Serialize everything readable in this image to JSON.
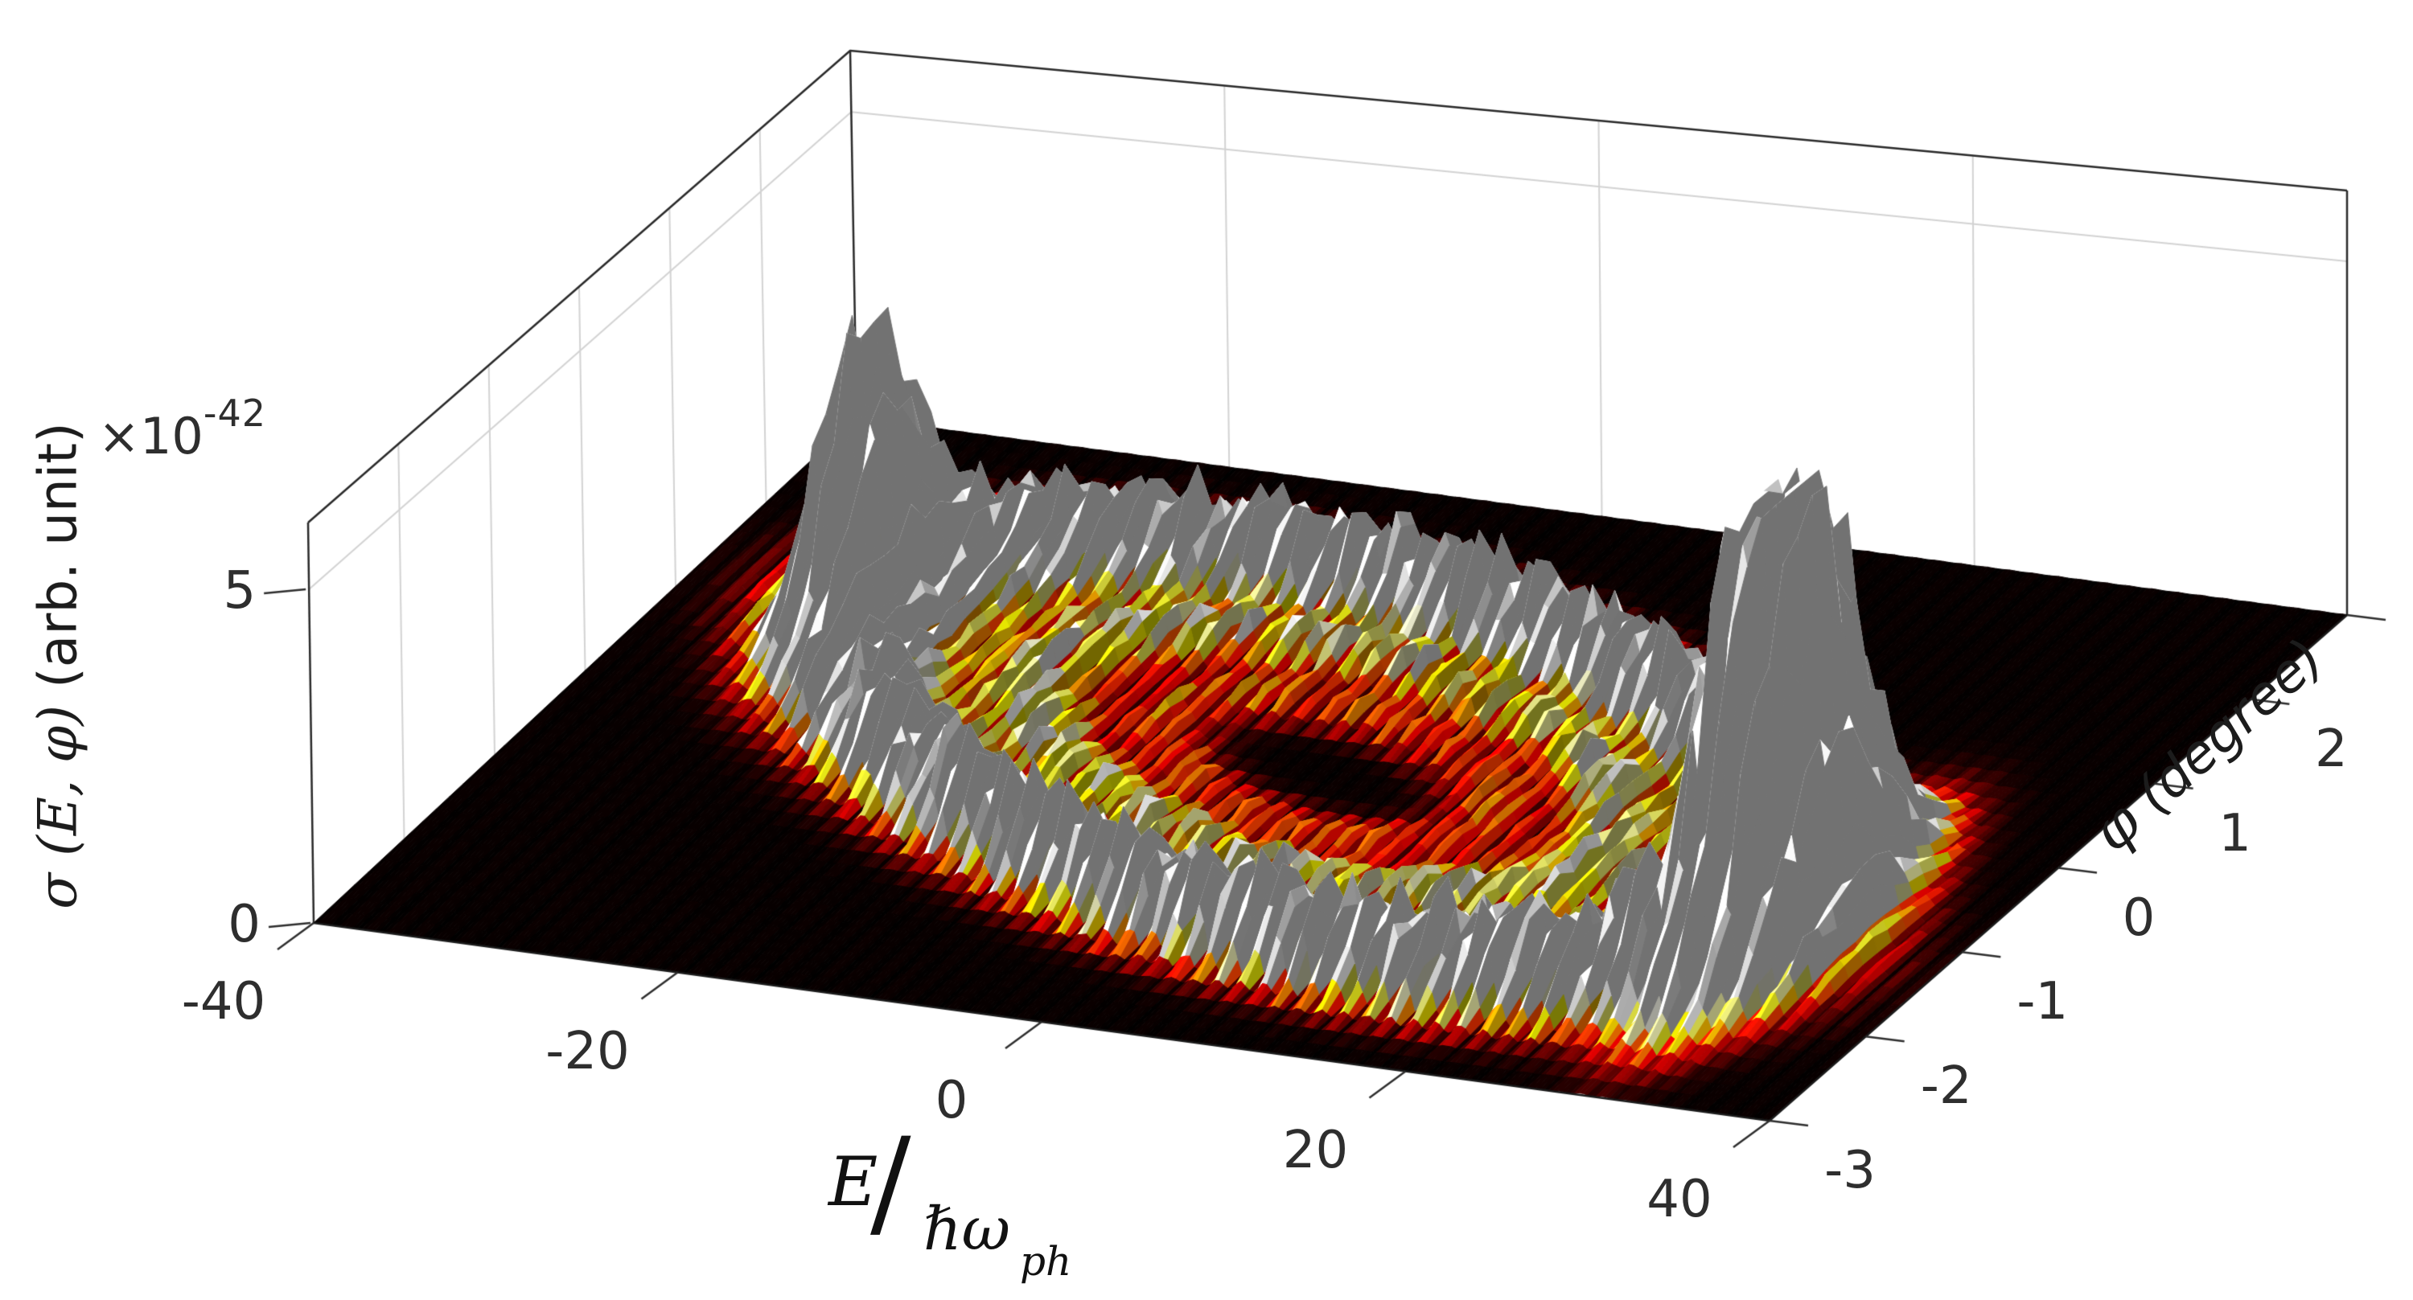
{
  "colors": {
    "background": "#ffffff",
    "box_edge": "#2a2a2a",
    "grid_line": "#d3d3d3",
    "tick": "#2e2e2e",
    "text": "#1c1c1c"
  },
  "chart_data": {
    "type": "surface3d",
    "title": "",
    "xlabel": "E/ℏω_ph",
    "ylabel": "φ (degree)",
    "zlabel": "σ (E, φ) (arb. unit)",
    "z_exponent": {
      "base": "×10",
      "power": "-42"
    },
    "x_ticks": [
      "-40",
      "-20",
      "0",
      "20",
      "40"
    ],
    "x_tick_values": [
      -40,
      -20,
      0,
      20,
      40
    ],
    "y_ticks": [
      "-3",
      "-2",
      "-1",
      "0",
      "1",
      "2"
    ],
    "y_tick_values": [
      -3,
      -2,
      -1,
      0,
      1,
      2
    ],
    "y_tick_marks": [
      -3,
      -2,
      -1,
      0,
      1,
      2,
      3
    ],
    "z_ticks": [
      "0",
      "5"
    ],
    "z_tick_values": [
      0,
      5
    ],
    "xlim": [
      -40,
      40
    ],
    "ylim": [
      -3,
      3
    ],
    "zlim": [
      0,
      6
    ],
    "grid": true,
    "legend": "none",
    "colormap": "hot",
    "color_axis_max": 0.5,
    "view": "matlab-default-3d (az -37.5, el 30)",
    "wall_grid_x": [
      -20,
      0,
      20
    ],
    "wall_grid_y": [
      -2,
      -1,
      0,
      1,
      2
    ],
    "wall_grid_z": [
      5
    ],
    "labels": {
      "xlabel_numerator": "E",
      "xlabel_slash": "∕",
      "xlabel_denominator": "ℏω",
      "xlabel_denominator_sub": "ph",
      "ylabel_symbol": "φ",
      "ylabel_unit": " (degree)",
      "zlabel_symbol": "σ",
      "zlabel_args": " (E, φ)",
      "zlabel_unit": " (arb. unit)"
    },
    "surface_model": {
      "description": "oscillatory interference ring with two dominant clipped peaks, hot colormap, values ×10^-42 arb. unit",
      "ring_center_E": 0.5,
      "ring_center_phi": -0.05,
      "ring_tilt_phi_per_E": 0.035,
      "ring_radius_E": 29.5,
      "ring_radius_phi": 1.72,
      "ring_width_rho": 0.16,
      "ring_amp": 1.15,
      "inner_rings": [
        {
          "rho": 0.62,
          "amp": 0.4,
          "width": 0.12
        },
        {
          "rho": 0.35,
          "amp": 0.22,
          "width": 0.1
        }
      ],
      "halo_amp": 0.05,
      "floor_amp": 0.006,
      "fringe_period_E": 1.28,
      "fringe_phase_E": 0.2,
      "jitter": 0.6,
      "peaks": [
        {
          "E": -29.5,
          "phi": 1.0,
          "sigma_E": 2.1,
          "sigma_phi": 0.55,
          "amp": 3.9
        },
        {
          "E": 30.5,
          "phi": -1.05,
          "sigma_E": 2.7,
          "sigma_phi": 0.8,
          "amp": 6.8
        }
      ],
      "grid_n_E": 336,
      "grid_n_phi": 40
    }
  }
}
